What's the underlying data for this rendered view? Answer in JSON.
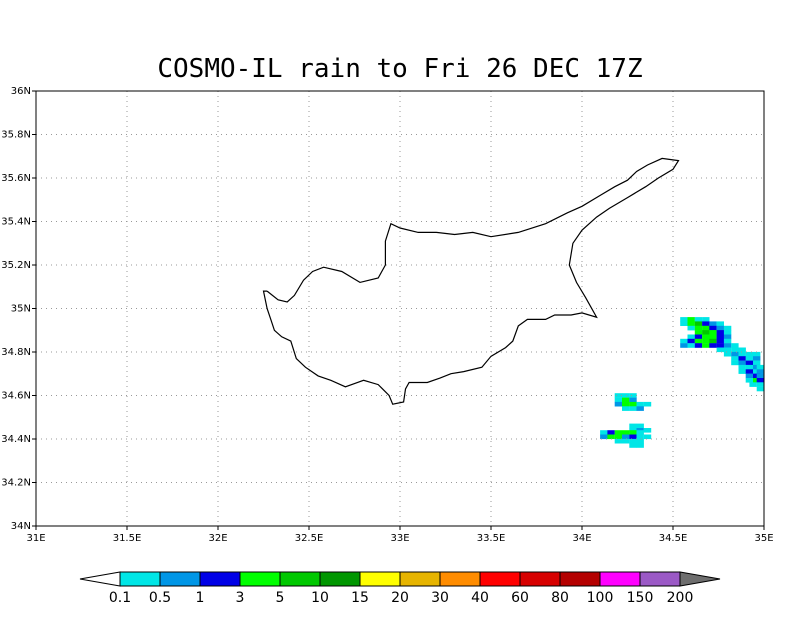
{
  "title": "COSMO-IL rain to Fri 26 DEC 17Z",
  "map": {
    "lon_range": [
      31,
      35
    ],
    "lat_range": [
      34,
      36
    ],
    "x_ticks": [
      {
        "value": 31,
        "label": "31E"
      },
      {
        "value": 31.5,
        "label": "31.5E"
      },
      {
        "value": 32,
        "label": "32E"
      },
      {
        "value": 32.5,
        "label": "32.5E"
      },
      {
        "value": 33,
        "label": "33E"
      },
      {
        "value": 33.5,
        "label": "33.5E"
      },
      {
        "value": 34,
        "label": "34E"
      },
      {
        "value": 34.5,
        "label": "34.5E"
      },
      {
        "value": 35,
        "label": "35E"
      }
    ],
    "y_ticks": [
      {
        "value": 34,
        "label": "34N"
      },
      {
        "value": 34.2,
        "label": "34.2N"
      },
      {
        "value": 34.4,
        "label": "34.4N"
      },
      {
        "value": 34.6,
        "label": "34.6N"
      },
      {
        "value": 34.8,
        "label": "34.8N"
      },
      {
        "value": 35,
        "label": "35N"
      },
      {
        "value": 35.2,
        "label": "35.2N"
      },
      {
        "value": 35.4,
        "label": "35.4N"
      },
      {
        "value": 35.6,
        "label": "35.6N"
      },
      {
        "value": 35.8,
        "label": "35.8N"
      },
      {
        "value": 36,
        "label": "36N"
      }
    ],
    "grid": true,
    "coastline": [
      [
        32.27,
        35.08
      ],
      [
        32.33,
        35.04
      ],
      [
        32.38,
        35.03
      ],
      [
        32.42,
        35.06
      ],
      [
        32.47,
        35.13
      ],
      [
        32.52,
        35.17
      ],
      [
        32.58,
        35.19
      ],
      [
        32.68,
        35.17
      ],
      [
        32.78,
        35.12
      ],
      [
        32.88,
        35.14
      ],
      [
        32.92,
        35.2
      ],
      [
        32.92,
        35.31
      ],
      [
        32.95,
        35.39
      ],
      [
        33.0,
        35.37
      ],
      [
        33.1,
        35.35
      ],
      [
        33.2,
        35.35
      ],
      [
        33.3,
        35.34
      ],
      [
        33.4,
        35.35
      ],
      [
        33.5,
        35.33
      ],
      [
        33.65,
        35.35
      ],
      [
        33.8,
        35.39
      ],
      [
        33.92,
        35.44
      ],
      [
        34.0,
        35.47
      ],
      [
        34.1,
        35.52
      ],
      [
        34.18,
        35.56
      ],
      [
        34.25,
        35.59
      ],
      [
        34.3,
        35.63
      ],
      [
        34.36,
        35.66
      ],
      [
        34.44,
        35.69
      ],
      [
        34.53,
        35.68
      ],
      [
        34.5,
        35.64
      ],
      [
        34.42,
        35.6
      ],
      [
        34.35,
        35.56
      ],
      [
        34.25,
        35.51
      ],
      [
        34.15,
        35.46
      ],
      [
        34.08,
        35.42
      ],
      [
        34.0,
        35.36
      ],
      [
        33.95,
        35.3
      ],
      [
        33.93,
        35.2
      ],
      [
        33.97,
        35.12
      ],
      [
        34.02,
        35.05
      ],
      [
        34.08,
        34.96
      ],
      [
        34.0,
        34.98
      ],
      [
        33.94,
        34.97
      ],
      [
        33.85,
        34.97
      ],
      [
        33.8,
        34.95
      ],
      [
        33.7,
        34.95
      ],
      [
        33.65,
        34.92
      ],
      [
        33.62,
        34.85
      ],
      [
        33.58,
        34.82
      ],
      [
        33.5,
        34.78
      ],
      [
        33.45,
        34.73
      ],
      [
        33.35,
        34.71
      ],
      [
        33.28,
        34.7
      ],
      [
        33.22,
        34.68
      ],
      [
        33.15,
        34.66
      ],
      [
        33.05,
        34.66
      ],
      [
        33.03,
        34.63
      ],
      [
        33.02,
        34.57
      ],
      [
        32.96,
        34.56
      ],
      [
        32.94,
        34.6
      ],
      [
        32.88,
        34.65
      ],
      [
        32.8,
        34.67
      ],
      [
        32.7,
        34.64
      ],
      [
        32.62,
        34.67
      ],
      [
        32.55,
        34.69
      ],
      [
        32.48,
        34.73
      ],
      [
        32.43,
        34.77
      ],
      [
        32.4,
        34.85
      ],
      [
        32.35,
        34.87
      ],
      [
        32.31,
        34.9
      ],
      [
        32.29,
        34.95
      ],
      [
        32.27,
        35.0
      ],
      [
        32.25,
        35.08
      ],
      [
        32.27,
        35.08
      ]
    ]
  },
  "rain_cells": [
    {
      "lon": 34.56,
      "lat": 34.95,
      "level": 0
    },
    {
      "lon": 34.6,
      "lat": 34.95,
      "level": 3
    },
    {
      "lon": 34.64,
      "lat": 34.95,
      "level": 0
    },
    {
      "lon": 34.68,
      "lat": 34.95,
      "level": 0
    },
    {
      "lon": 34.56,
      "lat": 34.93,
      "level": 0
    },
    {
      "lon": 34.6,
      "lat": 34.93,
      "level": 3
    },
    {
      "lon": 34.64,
      "lat": 34.93,
      "level": 4
    },
    {
      "lon": 34.68,
      "lat": 34.93,
      "level": 2
    },
    {
      "lon": 34.72,
      "lat": 34.93,
      "level": 1
    },
    {
      "lon": 34.76,
      "lat": 34.93,
      "level": 0
    },
    {
      "lon": 34.6,
      "lat": 34.91,
      "level": 0
    },
    {
      "lon": 34.64,
      "lat": 34.91,
      "level": 3
    },
    {
      "lon": 34.68,
      "lat": 34.91,
      "level": 3
    },
    {
      "lon": 34.72,
      "lat": 34.91,
      "level": 2
    },
    {
      "lon": 34.76,
      "lat": 34.91,
      "level": 1
    },
    {
      "lon": 34.8,
      "lat": 34.91,
      "level": 0
    },
    {
      "lon": 34.64,
      "lat": 34.89,
      "level": 3
    },
    {
      "lon": 34.68,
      "lat": 34.89,
      "level": 4
    },
    {
      "lon": 34.72,
      "lat": 34.89,
      "level": 3
    },
    {
      "lon": 34.76,
      "lat": 34.89,
      "level": 2
    },
    {
      "lon": 34.8,
      "lat": 34.89,
      "level": 0
    },
    {
      "lon": 34.6,
      "lat": 34.87,
      "level": 0
    },
    {
      "lon": 34.64,
      "lat": 34.87,
      "level": 2
    },
    {
      "lon": 34.68,
      "lat": 34.87,
      "level": 3
    },
    {
      "lon": 34.72,
      "lat": 34.87,
      "level": 3
    },
    {
      "lon": 34.76,
      "lat": 34.87,
      "level": 2
    },
    {
      "lon": 34.8,
      "lat": 34.87,
      "level": 1
    },
    {
      "lon": 34.56,
      "lat": 34.85,
      "level": 0
    },
    {
      "lon": 34.6,
      "lat": 34.85,
      "level": 2
    },
    {
      "lon": 34.64,
      "lat": 34.85,
      "level": 3
    },
    {
      "lon": 34.68,
      "lat": 34.85,
      "level": 3
    },
    {
      "lon": 34.72,
      "lat": 34.85,
      "level": 4
    },
    {
      "lon": 34.76,
      "lat": 34.85,
      "level": 2
    },
    {
      "lon": 34.8,
      "lat": 34.85,
      "level": 0
    },
    {
      "lon": 34.56,
      "lat": 34.83,
      "level": 1
    },
    {
      "lon": 34.6,
      "lat": 34.83,
      "level": 0
    },
    {
      "lon": 34.64,
      "lat": 34.83,
      "level": 2
    },
    {
      "lon": 34.68,
      "lat": 34.83,
      "level": 3
    },
    {
      "lon": 34.72,
      "lat": 34.83,
      "level": 2
    },
    {
      "lon": 34.76,
      "lat": 34.83,
      "level": 2
    },
    {
      "lon": 34.8,
      "lat": 34.83,
      "level": 1
    },
    {
      "lon": 34.84,
      "lat": 34.83,
      "level": 0
    },
    {
      "lon": 34.76,
      "lat": 34.81,
      "level": 0
    },
    {
      "lon": 34.8,
      "lat": 34.81,
      "level": 0
    },
    {
      "lon": 34.84,
      "lat": 34.81,
      "level": 0
    },
    {
      "lon": 34.88,
      "lat": 34.81,
      "level": 0
    },
    {
      "lon": 34.8,
      "lat": 34.79,
      "level": 0
    },
    {
      "lon": 34.84,
      "lat": 34.79,
      "level": 1
    },
    {
      "lon": 34.88,
      "lat": 34.79,
      "level": 0
    },
    {
      "lon": 34.92,
      "lat": 34.79,
      "level": 0
    },
    {
      "lon": 34.96,
      "lat": 34.79,
      "level": 0
    },
    {
      "lon": 34.84,
      "lat": 34.77,
      "level": 0
    },
    {
      "lon": 34.88,
      "lat": 34.77,
      "level": 2
    },
    {
      "lon": 34.92,
      "lat": 34.77,
      "level": 0
    },
    {
      "lon": 34.96,
      "lat": 34.77,
      "level": 1
    },
    {
      "lon": 34.84,
      "lat": 34.75,
      "level": 0
    },
    {
      "lon": 34.88,
      "lat": 34.75,
      "level": 1
    },
    {
      "lon": 34.92,
      "lat": 34.75,
      "level": 2
    },
    {
      "lon": 34.96,
      "lat": 34.75,
      "level": 0
    },
    {
      "lon": 34.88,
      "lat": 34.73,
      "level": 0
    },
    {
      "lon": 34.92,
      "lat": 34.73,
      "level": 0
    },
    {
      "lon": 34.96,
      "lat": 34.73,
      "level": 1
    },
    {
      "lon": 34.98,
      "lat": 34.73,
      "level": 0
    },
    {
      "lon": 34.88,
      "lat": 34.71,
      "level": 0
    },
    {
      "lon": 34.92,
      "lat": 34.71,
      "level": 2
    },
    {
      "lon": 34.96,
      "lat": 34.71,
      "level": 0
    },
    {
      "lon": 34.98,
      "lat": 34.71,
      "level": 1
    },
    {
      "lon": 34.92,
      "lat": 34.69,
      "level": 1
    },
    {
      "lon": 34.96,
      "lat": 34.69,
      "level": 2
    },
    {
      "lon": 34.98,
      "lat": 34.69,
      "level": 1
    },
    {
      "lon": 34.92,
      "lat": 34.67,
      "level": 0
    },
    {
      "lon": 34.96,
      "lat": 34.67,
      "level": 3
    },
    {
      "lon": 34.98,
      "lat": 34.67,
      "level": 2
    },
    {
      "lon": 34.94,
      "lat": 34.65,
      "level": 0
    },
    {
      "lon": 34.98,
      "lat": 34.65,
      "level": 0
    },
    {
      "lon": 34.98,
      "lat": 34.63,
      "level": 0
    },
    {
      "lon": 34.2,
      "lat": 34.6,
      "level": 0
    },
    {
      "lon": 34.24,
      "lat": 34.6,
      "level": 0
    },
    {
      "lon": 34.28,
      "lat": 34.6,
      "level": 0
    },
    {
      "lon": 34.2,
      "lat": 34.58,
      "level": 0
    },
    {
      "lon": 34.24,
      "lat": 34.58,
      "level": 3
    },
    {
      "lon": 34.28,
      "lat": 34.58,
      "level": 1
    },
    {
      "lon": 34.2,
      "lat": 34.56,
      "level": 1
    },
    {
      "lon": 34.24,
      "lat": 34.56,
      "level": 3
    },
    {
      "lon": 34.28,
      "lat": 34.56,
      "level": 3
    },
    {
      "lon": 34.32,
      "lat": 34.56,
      "level": 0
    },
    {
      "lon": 34.36,
      "lat": 34.56,
      "level": 0
    },
    {
      "lon": 34.24,
      "lat": 34.54,
      "level": 0
    },
    {
      "lon": 34.28,
      "lat": 34.54,
      "level": 0
    },
    {
      "lon": 34.32,
      "lat": 34.54,
      "level": 1
    },
    {
      "lon": 34.28,
      "lat": 34.46,
      "level": 0
    },
    {
      "lon": 34.32,
      "lat": 34.46,
      "level": 0
    },
    {
      "lon": 34.28,
      "lat": 34.44,
      "level": 0
    },
    {
      "lon": 34.32,
      "lat": 34.44,
      "level": 1
    },
    {
      "lon": 34.36,
      "lat": 34.44,
      "level": 0
    },
    {
      "lon": 34.12,
      "lat": 34.43,
      "level": 0
    },
    {
      "lon": 34.16,
      "lat": 34.43,
      "level": 2
    },
    {
      "lon": 34.2,
      "lat": 34.43,
      "level": 3
    },
    {
      "lon": 34.24,
      "lat": 34.43,
      "level": 3
    },
    {
      "lon": 34.28,
      "lat": 34.43,
      "level": 3
    },
    {
      "lon": 34.32,
      "lat": 34.43,
      "level": 0
    },
    {
      "lon": 34.12,
      "lat": 34.41,
      "level": 1
    },
    {
      "lon": 34.16,
      "lat": 34.41,
      "level": 3
    },
    {
      "lon": 34.2,
      "lat": 34.41,
      "level": 3
    },
    {
      "lon": 34.24,
      "lat": 34.41,
      "level": 1
    },
    {
      "lon": 34.28,
      "lat": 34.41,
      "level": 2
    },
    {
      "lon": 34.32,
      "lat": 34.41,
      "level": 0
    },
    {
      "lon": 34.36,
      "lat": 34.41,
      "level": 0
    },
    {
      "lon": 34.2,
      "lat": 34.39,
      "level": 0
    },
    {
      "lon": 34.24,
      "lat": 34.39,
      "level": 0
    },
    {
      "lon": 34.28,
      "lat": 34.39,
      "level": 0
    },
    {
      "lon": 34.32,
      "lat": 34.39,
      "level": 0
    },
    {
      "lon": 34.28,
      "lat": 34.37,
      "level": 0
    },
    {
      "lon": 34.32,
      "lat": 34.37,
      "level": 0
    }
  ],
  "colorbar": {
    "labels": [
      "0.1",
      "0.5",
      "1",
      "3",
      "5",
      "10",
      "15",
      "20",
      "30",
      "40",
      "60",
      "80",
      "100",
      "150",
      "200"
    ],
    "colors": [
      "#00e6e6",
      "#0096e6",
      "#0000e6",
      "#00ff00",
      "#00c800",
      "#009600",
      "#ffff00",
      "#e6b400",
      "#ff8c00",
      "#ff0000",
      "#d70000",
      "#b40000",
      "#ff00ff",
      "#9b59c6"
    ],
    "under_color": "#ffffff",
    "over_color": "#6e6e6e"
  }
}
